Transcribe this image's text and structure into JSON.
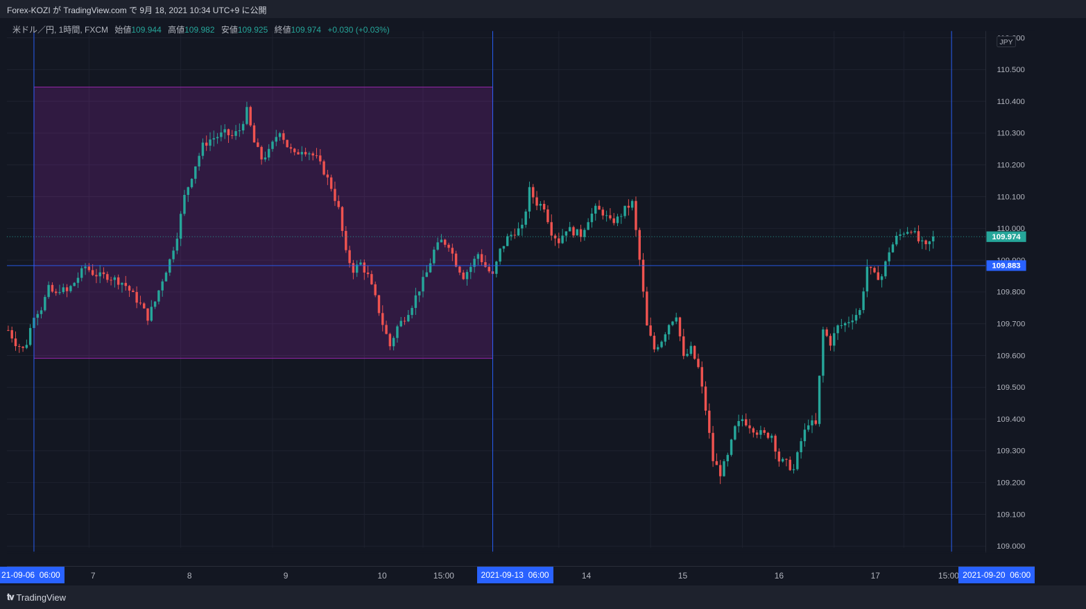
{
  "header": {
    "publish_text": "Forex-KOZI が TradingView.com で 9月 18, 2021 10:34 UTC+9 に公開"
  },
  "legend": {
    "symbol": "米ドル／円, 1時間, FXCM",
    "open_label": "始値",
    "open": "109.944",
    "high_label": "高値",
    "high": "109.982",
    "low_label": "安値",
    "low": "109.925",
    "close_label": "終値",
    "close": "109.974",
    "change": "+0.030 (+0.03%)"
  },
  "footer": {
    "brand": "TradingView",
    "logo": "tv-logo-icon"
  },
  "colors": {
    "up": "#26a69a",
    "down": "#ef5350",
    "box": "#9c27b0",
    "crosshair": "#2962ff",
    "bg": "#131722"
  },
  "chart_data": {
    "type": "candlestick",
    "currency": "JPY",
    "ylim": [
      108.995,
      110.613
    ],
    "y_ticks": [
      "110.600",
      "110.500",
      "110.400",
      "110.300",
      "110.200",
      "110.100",
      "110.000",
      "109.900",
      "109.800",
      "109.700",
      "109.600",
      "109.500",
      "109.400",
      "109.300",
      "109.200",
      "109.100",
      "109.000"
    ],
    "x_ticks": [
      "7",
      "8",
      "9",
      "10",
      "15:00",
      "14",
      "15",
      "16",
      "17",
      "15:00"
    ],
    "x_tick_index": [
      22,
      47,
      72,
      97,
      113,
      150,
      175,
      200,
      225,
      244
    ],
    "x_highlight_labels": [
      {
        "label": "21-09-06  06:00",
        "index": 7
      },
      {
        "label": "2021-09-13  06:00",
        "index": 132
      },
      {
        "label": "2021-09-20  06:00",
        "index": 257
      }
    ],
    "last_price": {
      "label": "109.974",
      "value": 109.974
    },
    "crosshair_price": {
      "label": "109.883",
      "value": 109.883
    },
    "crosshair_index": [
      7,
      132,
      257
    ],
    "range_box": {
      "from_index": 7,
      "to_index": 132,
      "high": 110.445,
      "low": 109.591
    },
    "points": [
      [
        0,
        109.68
      ],
      [
        2,
        109.64
      ],
      [
        4,
        109.62
      ],
      [
        5,
        109.64
      ],
      [
        7,
        109.73
      ],
      [
        9,
        109.75
      ],
      [
        11,
        109.81
      ],
      [
        13,
        109.79
      ],
      [
        14,
        109.81
      ],
      [
        16,
        109.8
      ],
      [
        18,
        109.83
      ],
      [
        21,
        109.88
      ],
      [
        23,
        109.86
      ],
      [
        25,
        109.85
      ],
      [
        27,
        109.85
      ],
      [
        29,
        109.84
      ],
      [
        31,
        109.83
      ],
      [
        32,
        109.82
      ],
      [
        34,
        109.79
      ],
      [
        36,
        109.76
      ],
      [
        38,
        109.72
      ],
      [
        40,
        109.77
      ],
      [
        42,
        109.84
      ],
      [
        44,
        109.9
      ],
      [
        46,
        109.98
      ],
      [
        48,
        110.1
      ],
      [
        51,
        110.2
      ],
      [
        53,
        110.26
      ],
      [
        55,
        110.28
      ],
      [
        57,
        110.29
      ],
      [
        59,
        110.3
      ],
      [
        61,
        110.29
      ],
      [
        63,
        110.31
      ],
      [
        65,
        110.37
      ],
      [
        67,
        110.27
      ],
      [
        69,
        110.22
      ],
      [
        71,
        110.24
      ],
      [
        73,
        110.29
      ],
      [
        74,
        110.31
      ],
      [
        76,
        110.26
      ],
      [
        78,
        110.23
      ],
      [
        80,
        110.25
      ],
      [
        82,
        110.24
      ],
      [
        84,
        110.22
      ],
      [
        86,
        110.18
      ],
      [
        88,
        110.13
      ],
      [
        90,
        110.06
      ],
      [
        92,
        109.92
      ],
      [
        94,
        109.87
      ],
      [
        96,
        109.89
      ],
      [
        98,
        109.85
      ],
      [
        100,
        109.78
      ],
      [
        102,
        109.7
      ],
      [
        104,
        109.63
      ],
      [
        106,
        109.69
      ],
      [
        108,
        109.72
      ],
      [
        110,
        109.76
      ],
      [
        112,
        109.81
      ],
      [
        114,
        109.86
      ],
      [
        116,
        109.93
      ],
      [
        118,
        109.96
      ],
      [
        120,
        109.95
      ],
      [
        122,
        109.89
      ],
      [
        124,
        109.85
      ],
      [
        126,
        109.88
      ],
      [
        128,
        109.92
      ],
      [
        130,
        109.88
      ],
      [
        132,
        109.85
      ],
      [
        134,
        109.93
      ],
      [
        136,
        109.97
      ],
      [
        138,
        109.99
      ],
      [
        140,
        110.0
      ],
      [
        142,
        110.12
      ],
      [
        144,
        110.08
      ],
      [
        146,
        110.07
      ],
      [
        148,
        109.99
      ],
      [
        150,
        109.96
      ],
      [
        152,
        110.0
      ],
      [
        154,
        109.99
      ],
      [
        156,
        109.98
      ],
      [
        158,
        110.03
      ],
      [
        160,
        110.06
      ],
      [
        162,
        110.05
      ],
      [
        164,
        110.02
      ],
      [
        166,
        110.03
      ],
      [
        168,
        110.06
      ],
      [
        170,
        110.08
      ],
      [
        172,
        109.9
      ],
      [
        174,
        109.69
      ],
      [
        176,
        109.62
      ],
      [
        178,
        109.65
      ],
      [
        180,
        109.7
      ],
      [
        182,
        109.73
      ],
      [
        184,
        109.59
      ],
      [
        186,
        109.62
      ],
      [
        188,
        109.56
      ],
      [
        190,
        109.43
      ],
      [
        192,
        109.27
      ],
      [
        194,
        109.23
      ],
      [
        196,
        109.28
      ],
      [
        198,
        109.37
      ],
      [
        200,
        109.4
      ],
      [
        202,
        109.38
      ],
      [
        204,
        109.36
      ],
      [
        206,
        109.35
      ],
      [
        208,
        109.35
      ],
      [
        210,
        109.27
      ],
      [
        212,
        109.26
      ],
      [
        214,
        109.24
      ],
      [
        216,
        109.33
      ],
      [
        218,
        109.39
      ],
      [
        220,
        109.38
      ],
      [
        222,
        109.68
      ],
      [
        224,
        109.64
      ],
      [
        226,
        109.69
      ],
      [
        228,
        109.7
      ],
      [
        230,
        109.72
      ],
      [
        232,
        109.74
      ],
      [
        234,
        109.88
      ],
      [
        236,
        109.85
      ],
      [
        238,
        109.85
      ],
      [
        240,
        109.93
      ],
      [
        242,
        109.97
      ],
      [
        244,
        109.99
      ],
      [
        246,
        110.0
      ],
      [
        248,
        109.96
      ],
      [
        250,
        109.94
      ],
      [
        252,
        109.97
      ]
    ]
  }
}
